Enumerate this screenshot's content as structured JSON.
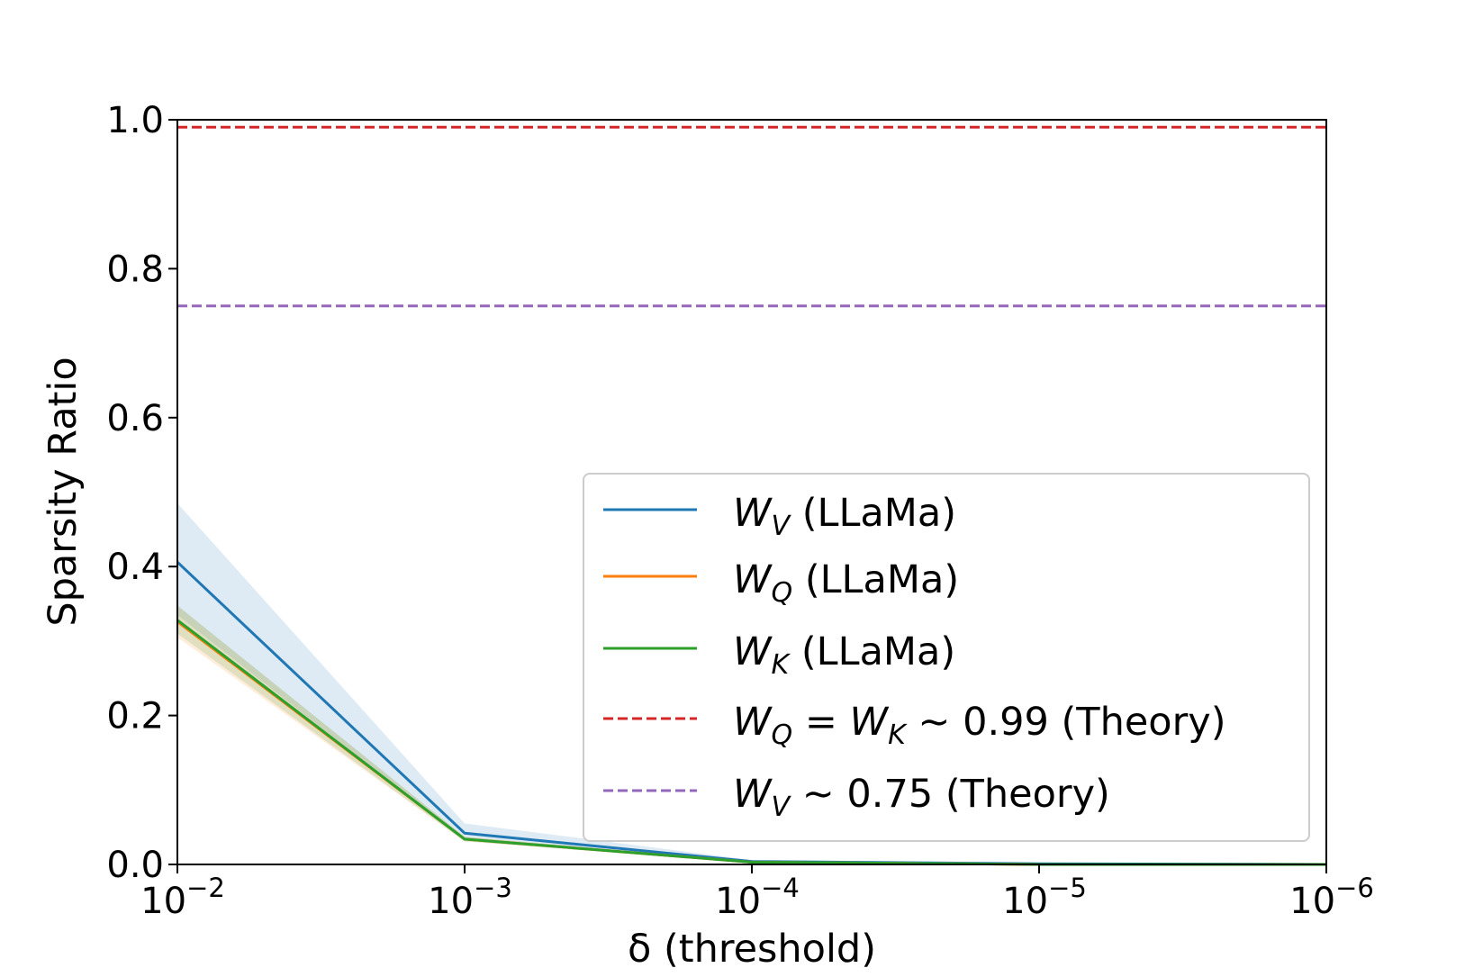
{
  "chart_data": {
    "type": "line",
    "title": "",
    "xlabel": "δ (threshold)",
    "ylabel": "Sparsity Ratio",
    "x_scale": "log",
    "x_reversed": true,
    "x_ticks": [
      0.01,
      0.001,
      0.0001,
      1e-05,
      1e-06
    ],
    "x_tick_labels": [
      {
        "base": "10",
        "exp": "−2"
      },
      {
        "base": "10",
        "exp": "−3"
      },
      {
        "base": "10",
        "exp": "−4"
      },
      {
        "base": "10",
        "exp": "−5"
      },
      {
        "base": "10",
        "exp": "−6"
      }
    ],
    "xlim": [
      0.01,
      1e-06
    ],
    "ylim": [
      0.0,
      1.0
    ],
    "y_ticks": [
      0.0,
      0.2,
      0.4,
      0.6,
      0.8,
      1.0
    ],
    "y_tick_labels": [
      "0.0",
      "0.2",
      "0.4",
      "0.6",
      "0.8",
      "1.0"
    ],
    "grid": false,
    "legend_position": "lower-right",
    "x": [
      0.01,
      0.001,
      0.0001,
      1e-05,
      1e-06
    ],
    "series": [
      {
        "key": "wv",
        "legend_main": "W",
        "legend_sub": "V",
        "legend_tail": " (LLaMa)",
        "color": "#1f77b4",
        "style": "solid",
        "values": [
          0.406,
          0.042,
          0.004,
          0.001,
          0.0
        ],
        "band_low": [
          0.335,
          0.033,
          0.002,
          0.0,
          0.0
        ],
        "band_high": [
          0.485,
          0.055,
          0.006,
          0.002,
          0.001
        ]
      },
      {
        "key": "wq",
        "legend_main": "W",
        "legend_sub": "Q",
        "legend_tail": " (LLaMa)",
        "color": "#ff7f0e",
        "style": "solid",
        "values": [
          0.326,
          0.034,
          0.003,
          0.0,
          0.0
        ],
        "band_low": [
          0.305,
          0.031,
          0.002,
          0.0,
          0.0
        ],
        "band_high": [
          0.347,
          0.037,
          0.004,
          0.001,
          0.0
        ]
      },
      {
        "key": "wk",
        "legend_main": "W",
        "legend_sub": "K",
        "legend_tail": " (LLaMa)",
        "color": "#2ca02c",
        "style": "solid",
        "values": [
          0.328,
          0.034,
          0.003,
          0.0,
          0.0
        ],
        "band_low": [
          0.31,
          0.031,
          0.002,
          0.0,
          0.0
        ],
        "band_high": [
          0.348,
          0.037,
          0.004,
          0.001,
          0.0
        ]
      },
      {
        "key": "theory-qk",
        "legend_main": "W",
        "legend_sub": "Q",
        "legend_mid": " = ",
        "legend_main2": "W",
        "legend_sub2": "K",
        "legend_tail": " ∼ 0.99 (Theory)",
        "color": "#d62728",
        "style": "dashed",
        "constant": 0.99
      },
      {
        "key": "theory-v",
        "legend_main": "W",
        "legend_sub": "V",
        "legend_tail": " ∼ 0.75 (Theory)",
        "color": "#9467bd",
        "style": "dashed",
        "constant": 0.75
      }
    ]
  }
}
